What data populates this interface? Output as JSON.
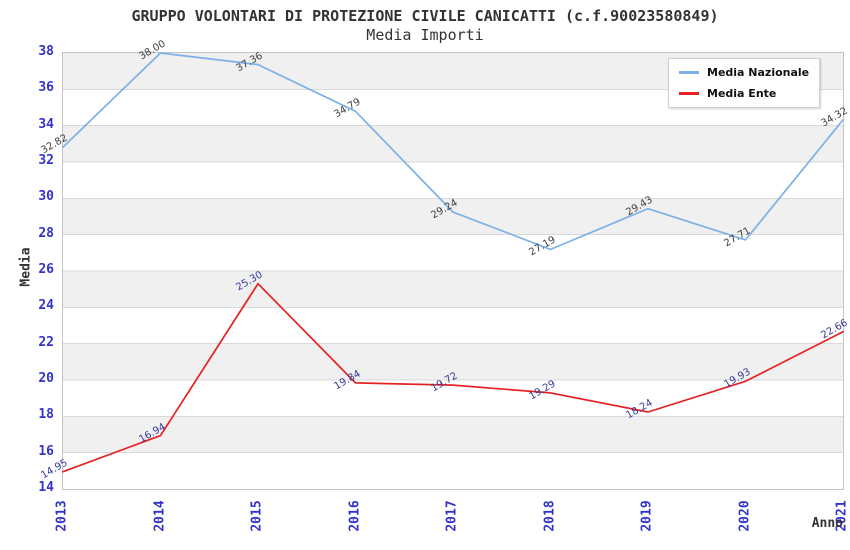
{
  "chart_data": {
    "type": "line",
    "title": "GRUPPO VOLONTARI DI PROTEZIONE CIVILE CANICATTI (c.f.90023580849)",
    "subtitle": "Media Importi",
    "xlabel": "Anno",
    "ylabel": "Media",
    "categories": [
      "2013",
      "2014",
      "2015",
      "2016",
      "2017",
      "2018",
      "2019",
      "2020",
      "2021"
    ],
    "ylim": [
      14,
      38
    ],
    "ytick_step": 2,
    "grid": "horizontal",
    "plot_bands_alternating": true,
    "legend_position": "top-right",
    "value_label_decimals": 2,
    "series": [
      {
        "name": "Media Nazionale",
        "color": "#7cb0e6",
        "label_color": "#3f3f3f",
        "values": [
          32.82,
          38.0,
          37.36,
          34.79,
          29.24,
          27.19,
          29.43,
          27.71,
          34.32
        ]
      },
      {
        "name": "Media Ente",
        "color": "#e42222",
        "label_color": "#333a99",
        "values": [
          14.95,
          16.94,
          25.3,
          19.84,
          19.72,
          19.29,
          18.24,
          19.93,
          22.66
        ]
      }
    ]
  },
  "colors": {
    "tick_text": "#3333cc",
    "band_gray": "#f0f0f0",
    "band_white": "#ffffff",
    "grid_line": "#d9d9d9",
    "plot_border": "#c4c4c4",
    "title_text": "#333333"
  }
}
